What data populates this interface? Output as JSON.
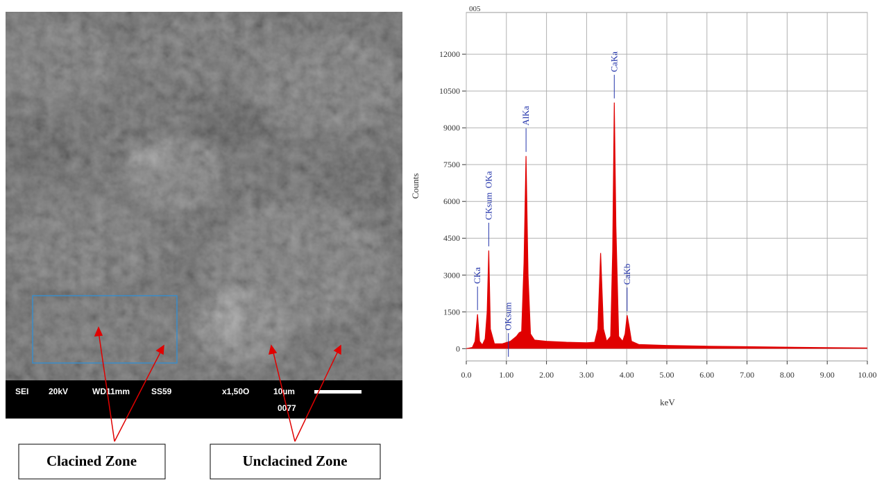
{
  "sem_image": {
    "info": [
      "SEI",
      "20kV",
      "WD11mm",
      "SS59",
      "x1,50O",
      "10µm",
      "0077"
    ],
    "callouts": [
      "Clacined Zone",
      "Unclacined Zone"
    ]
  },
  "chart_data": {
    "type": "area",
    "title": "005",
    "xlabel": "keV",
    "ylabel": "Counts",
    "color": "#e00000",
    "x": [
      0.0,
      0.15,
      0.22,
      0.28,
      0.33,
      0.4,
      0.47,
      0.52,
      0.56,
      0.6,
      0.7,
      0.9,
      1.1,
      1.25,
      1.32,
      1.38,
      1.44,
      1.49,
      1.54,
      1.6,
      1.7,
      2.0,
      2.5,
      3.0,
      3.2,
      3.28,
      3.35,
      3.42,
      3.5,
      3.6,
      3.65,
      3.69,
      3.73,
      3.8,
      3.9,
      3.96,
      4.01,
      4.06,
      4.12,
      4.3,
      5.0,
      6.0,
      7.0,
      8.0,
      9.0,
      10.0
    ],
    "values": [
      0,
      50,
      300,
      1400,
      300,
      150,
      400,
      1500,
      4000,
      800,
      200,
      200,
      300,
      500,
      650,
      700,
      3500,
      7850,
      3000,
      600,
      350,
      300,
      260,
      240,
      260,
      800,
      3900,
      800,
      300,
      500,
      4000,
      10030,
      5000,
      500,
      300,
      600,
      1360,
      900,
      300,
      170,
      130,
      100,
      80,
      60,
      40,
      30
    ],
    "annotations": [
      {
        "label": "CKa",
        "x": 0.28
      },
      {
        "label": "CKsum",
        "x": 0.56
      },
      {
        "label": "OKa",
        "x": 0.56
      },
      {
        "label": "OKsum",
        "x": 1.05
      },
      {
        "label": "AlKa",
        "x": 1.49
      },
      {
        "label": "CaKa",
        "x": 3.69
      },
      {
        "label": "CaKb",
        "x": 4.01
      }
    ],
    "xlim": [
      0,
      10
    ],
    "ylim": [
      -500,
      13700
    ],
    "xticks": [
      {
        "value": 0,
        "label": "0.0"
      },
      {
        "value": 1,
        "label": "1.00"
      },
      {
        "value": 2,
        "label": "2.00"
      },
      {
        "value": 3,
        "label": "3.00"
      },
      {
        "value": 4,
        "label": "4.00"
      },
      {
        "value": 5,
        "label": "5.00"
      },
      {
        "value": 6,
        "label": "6.00"
      },
      {
        "value": 7,
        "label": "7.00"
      },
      {
        "value": 8,
        "label": "8.00"
      },
      {
        "value": 9,
        "label": "9.00"
      },
      {
        "value": 10,
        "label": "10.00"
      }
    ],
    "yticks": [
      0,
      1500,
      3000,
      4500,
      6000,
      7500,
      9000,
      10500,
      12000
    ],
    "grid": true
  }
}
